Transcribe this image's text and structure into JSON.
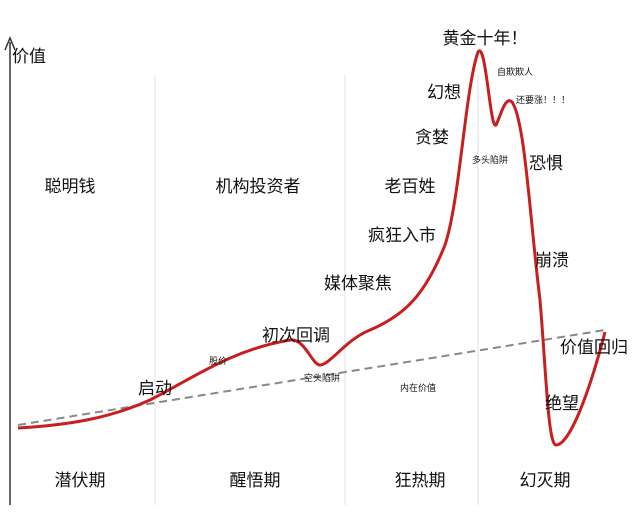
{
  "axis": {
    "y_label": "价值"
  },
  "investors": [
    "聪明钱",
    "机构投资者",
    "老百姓"
  ],
  "phases": [
    "潜伏期",
    "醒悟期",
    "狂热期",
    "幻灭期"
  ],
  "labels": {
    "start": "启动",
    "stock_price": "股价",
    "first_pullback": "初次回调",
    "bear_trap": "空头陷阱",
    "media": "媒体聚焦",
    "frenzy": "疯狂入市",
    "greed": "贪婪",
    "illusion": "幻想",
    "golden": "黄金十年！",
    "self_deception": "自欺欺人",
    "bull_trap": "多头陷阱",
    "still_rising": "还要涨！！！",
    "fear": "恐惧",
    "collapse": "崩溃",
    "reversion": "价值回归",
    "despair": "绝望",
    "intrinsic": "内在价值"
  }
}
